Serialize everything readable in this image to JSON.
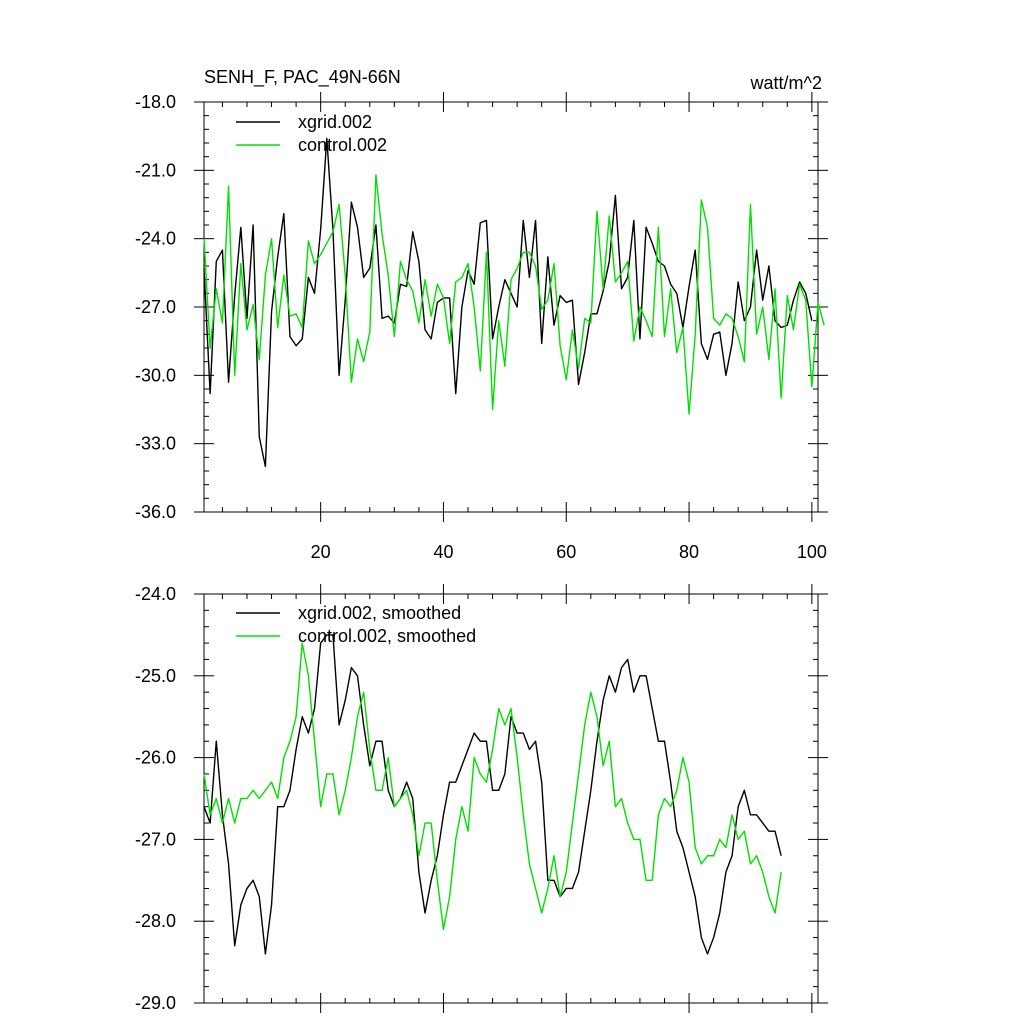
{
  "figure": {
    "title_left": "SENH_F, PAC_49N-66N",
    "title_right": "watt/m^2"
  },
  "chart_data": [
    {
      "type": "line",
      "title": "SENH_F, PAC_49N-66N",
      "units": "watt/m^2",
      "xlim": [
        1,
        101
      ],
      "ylim": [
        -36.0,
        -18.0
      ],
      "x_ticks": [
        20,
        40,
        60,
        80,
        100
      ],
      "y_ticks": [
        -18.0,
        -21.0,
        -24.0,
        -27.0,
        -30.0,
        -33.0,
        -36.0
      ],
      "x_start": 1,
      "legend": {
        "placement": "top-left"
      },
      "grid": false,
      "series": [
        {
          "name": "xgrid.002",
          "color": "#000000",
          "values": [
            -25.3,
            -30.8,
            -25.0,
            -24.5,
            -30.3,
            -26.5,
            -23.5,
            -27.5,
            -23.4,
            -32.7,
            -34.0,
            -27.2,
            -24.8,
            -22.9,
            -28.3,
            -28.7,
            -28.4,
            -25.7,
            -26.4,
            -23.6,
            -19.6,
            -23.6,
            -30.0,
            -26.7,
            -22.4,
            -23.5,
            -25.7,
            -25.3,
            -23.4,
            -27.5,
            -27.4,
            -27.7,
            -26.0,
            -26.1,
            -23.7,
            -25.0,
            -28.0,
            -28.4,
            -26.8,
            -26.6,
            -26.6,
            -30.8,
            -27.0,
            -25.4,
            -26.0,
            -23.3,
            -23.2,
            -28.4,
            -27.0,
            -25.8,
            -26.4,
            -27.0,
            -23.2,
            -25.7,
            -23.2,
            -28.6,
            -24.8,
            -27.8,
            -26.5,
            -26.8,
            -26.7,
            -30.4,
            -29.0,
            -27.3,
            -27.3,
            -26.3,
            -25.0,
            -22.1,
            -26.2,
            -25.7,
            -23.2,
            -28.4,
            -23.5,
            -24.2,
            -25.0,
            -25.2,
            -26.0,
            -26.4,
            -27.9,
            -26.1,
            -24.5,
            -28.6,
            -29.3,
            -28.2,
            -28.1,
            -30.0,
            -28.6,
            -25.9,
            -27.6,
            -27.0,
            -24.5,
            -26.7,
            -25.2,
            -27.6,
            -27.9,
            -27.8,
            -26.7,
            -25.9,
            -26.4,
            -27.6
          ]
        },
        {
          "name": "control.002",
          "color": "#00e000",
          "values": [
            -24.0,
            -28.8,
            -26.2,
            -27.7,
            -21.7,
            -30.0,
            -25.1,
            -28.0,
            -26.9,
            -29.3,
            -25.6,
            -24.0,
            -27.9,
            -25.6,
            -27.4,
            -27.3,
            -27.9,
            -24.1,
            -25.1,
            -24.7,
            -24.2,
            -23.7,
            -22.5,
            -25.6,
            -30.3,
            -28.4,
            -29.4,
            -28.1,
            -21.2,
            -23.8,
            -25.6,
            -28.3,
            -25.0,
            -25.8,
            -26.3,
            -27.7,
            -25.8,
            -27.4,
            -26.0,
            -26.6,
            -28.6,
            -25.9,
            -25.7,
            -25.1,
            -27.0,
            -29.8,
            -24.6,
            -31.5,
            -27.6,
            -29.6,
            -25.8,
            -25.3,
            -24.6,
            -24.6,
            -25.2,
            -27.1,
            -26.7,
            -25.1,
            -28.7,
            -30.2,
            -28.0,
            -29.7,
            -27.5,
            -27.7,
            -22.8,
            -26.2,
            -23.0,
            -25.9,
            -25.5,
            -25.0,
            -28.5,
            -27.0,
            -27.6,
            -28.3,
            -23.5,
            -28.3,
            -26.2,
            -29.0,
            -27.9,
            -31.7,
            -28.2,
            -22.3,
            -23.5,
            -27.5,
            -27.8,
            -27.3,
            -27.5,
            -28.3,
            -29.4,
            -22.5,
            -28.2,
            -27.0,
            -29.3,
            -26.2,
            -31.0,
            -26.5,
            -28.0,
            -26.0,
            -26.7,
            -30.5,
            -26.8,
            -27.8
          ]
        }
      ]
    },
    {
      "type": "line",
      "xlim": [
        1,
        101
      ],
      "ylim": [
        -29.0,
        -24.0
      ],
      "y_ticks": [
        -24.0,
        -25.0,
        -26.0,
        -27.0,
        -28.0,
        -29.0
      ],
      "x_start": 1,
      "legend": {
        "placement": "top-left"
      },
      "grid": false,
      "series": [
        {
          "name": "xgrid.002, smoothed",
          "color": "#000000",
          "values": [
            -26.6,
            -26.8,
            -25.8,
            -26.7,
            -27.3,
            -28.3,
            -27.8,
            -27.6,
            -27.5,
            -27.7,
            -28.4,
            -27.8,
            -26.6,
            -26.6,
            -26.4,
            -25.9,
            -25.5,
            -25.7,
            -25.4,
            -24.6,
            -24.5,
            -24.5,
            -25.6,
            -25.3,
            -24.9,
            -25.0,
            -25.6,
            -26.1,
            -25.8,
            -25.8,
            -26.4,
            -26.6,
            -26.5,
            -26.3,
            -26.5,
            -27.4,
            -27.9,
            -27.5,
            -27.2,
            -26.7,
            -26.3,
            -26.3,
            -26.1,
            -25.9,
            -25.7,
            -25.8,
            -25.8,
            -26.4,
            -26.4,
            -26.2,
            -25.5,
            -25.7,
            -25.7,
            -25.9,
            -25.8,
            -26.3,
            -27.5,
            -27.5,
            -27.7,
            -27.6,
            -27.6,
            -27.4,
            -26.9,
            -26.4,
            -25.8,
            -25.3,
            -25.0,
            -25.2,
            -24.9,
            -24.8,
            -25.2,
            -25.0,
            -25.0,
            -25.4,
            -25.8,
            -25.8,
            -26.3,
            -26.9,
            -27.1,
            -27.4,
            -27.7,
            -28.2,
            -28.4,
            -28.2,
            -27.9,
            -27.4,
            -27.2,
            -26.6,
            -26.4,
            -26.7,
            -26.7,
            -26.8,
            -26.9,
            -26.9,
            -27.2
          ]
        },
        {
          "name": "control.002, smoothed",
          "color": "#00e000",
          "values": [
            -26.2,
            -26.7,
            -26.5,
            -26.8,
            -26.5,
            -26.8,
            -26.5,
            -26.5,
            -26.4,
            -26.5,
            -26.4,
            -26.3,
            -26.5,
            -26.0,
            -25.8,
            -25.5,
            -24.6,
            -25.0,
            -25.8,
            -26.6,
            -26.2,
            -26.2,
            -26.7,
            -26.4,
            -26.0,
            -25.5,
            -25.2,
            -25.9,
            -26.4,
            -26.4,
            -26.0,
            -26.6,
            -26.5,
            -26.4,
            -26.7,
            -27.2,
            -26.8,
            -26.8,
            -27.5,
            -28.1,
            -27.7,
            -27.0,
            -26.6,
            -26.9,
            -26.0,
            -26.2,
            -26.3,
            -25.9,
            -25.4,
            -25.6,
            -25.4,
            -26.0,
            -26.7,
            -27.3,
            -27.6,
            -27.9,
            -27.6,
            -27.2,
            -27.7,
            -27.4,
            -26.8,
            -26.2,
            -25.6,
            -25.2,
            -25.5,
            -26.1,
            -25.8,
            -26.6,
            -26.5,
            -26.8,
            -27.0,
            -27.0,
            -27.5,
            -27.5,
            -26.7,
            -26.5,
            -26.6,
            -26.4,
            -26.0,
            -26.3,
            -27.1,
            -27.3,
            -27.2,
            -27.2,
            -27.0,
            -27.1,
            -26.7,
            -27.0,
            -26.9,
            -27.3,
            -27.2,
            -27.4,
            -27.7,
            -27.9,
            -27.4
          ]
        }
      ]
    }
  ]
}
